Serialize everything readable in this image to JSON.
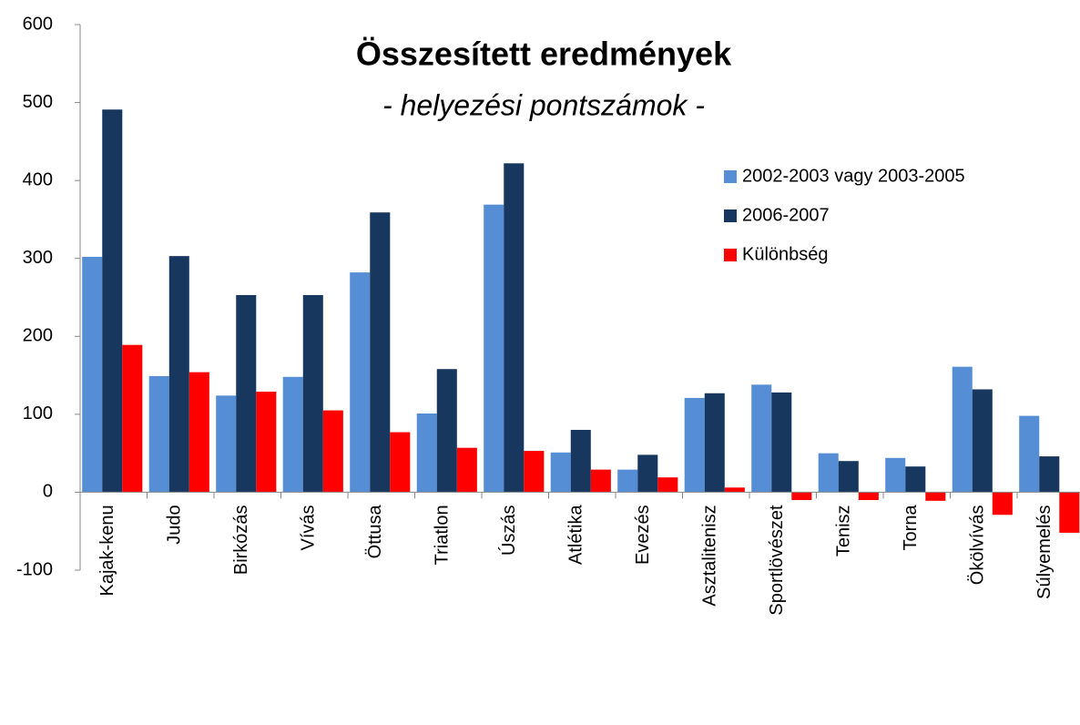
{
  "chart_data": {
    "type": "bar",
    "title": "Összesített eredmények",
    "subtitle": "- helyezési pontszámok -",
    "categories": [
      "Kajak-kenu",
      "Judo",
      "Birkózás",
      "Vívás",
      "Öttusa",
      "Triatlon",
      "Úszás",
      "Atlétika",
      "Evezés",
      "Asztalitenisz",
      "Sportlövészet",
      "Tenisz",
      "Torna",
      "Ökölvívás",
      "Súlyemelés"
    ],
    "series": [
      {
        "name": "2002-2003 vagy 2003-2005",
        "color": "#558ed5",
        "values": [
          302,
          149,
          124,
          148,
          282,
          101,
          369,
          51,
          29,
          121,
          138,
          50,
          44,
          161,
          98
        ]
      },
      {
        "name": "2006-2007",
        "color": "#17375e",
        "values": [
          491,
          303,
          253,
          253,
          359,
          158,
          422,
          80,
          48,
          127,
          128,
          40,
          33,
          132,
          46
        ]
      },
      {
        "name": "Különbség",
        "color": "#ff0000",
        "values": [
          189,
          154,
          129,
          105,
          77,
          57,
          53,
          29,
          19,
          6,
          -10,
          -10,
          -11,
          -29,
          -52
        ]
      }
    ],
    "ylim": [
      -100,
      600
    ],
    "yticks": [
      -100,
      0,
      100,
      200,
      300,
      400,
      500,
      600
    ],
    "grid": false,
    "legend": "upper right"
  }
}
